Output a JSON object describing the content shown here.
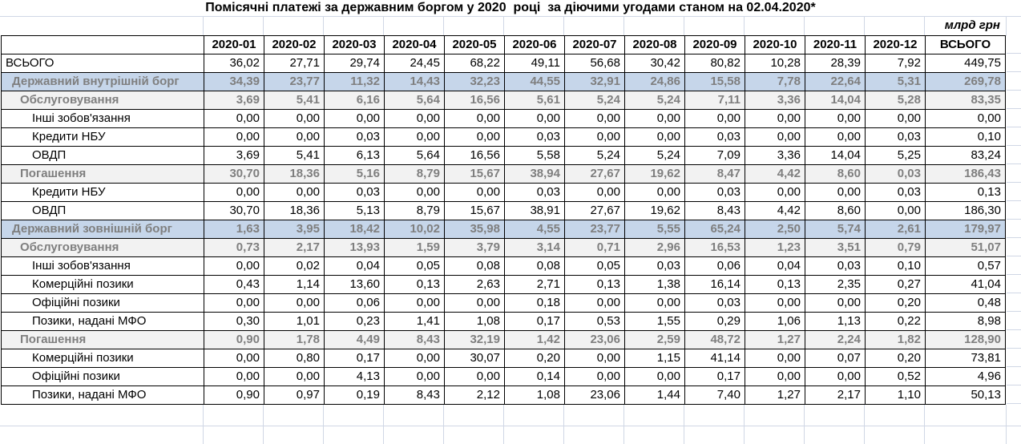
{
  "title": "Помісячні платежі за державним боргом у 2020  році  за діючими угодами станом на 02.04.2020*",
  "unit_label": "млрд грн",
  "colors": {
    "section_blue_bg": "#c6d6ea",
    "section_gray_bg": "#f2f2f2",
    "section_text": "#7f7f7f",
    "gridline": "#d0d7e5",
    "table_border": "#000000"
  },
  "table": {
    "label_header": "",
    "col_headers": [
      "2020-01",
      "2020-02",
      "2020-03",
      "2020-04",
      "2020-05",
      "2020-06",
      "2020-07",
      "2020-08",
      "2020-09",
      "2020-10",
      "2020-11",
      "2020-12",
      "ВСЬОГО"
    ],
    "rows": [
      {
        "label": "ВСЬОГО",
        "style": "plain",
        "indent": 0,
        "values": [
          "36,02",
          "27,71",
          "29,74",
          "24,45",
          "68,22",
          "49,11",
          "56,68",
          "30,42",
          "80,82",
          "10,28",
          "28,39",
          "7,92"
        ],
        "total": "449,75"
      },
      {
        "label": "Державний внутрішній борг",
        "style": "blue",
        "indent": 1,
        "values": [
          "34,39",
          "23,77",
          "11,32",
          "14,43",
          "32,23",
          "44,55",
          "32,91",
          "24,86",
          "15,58",
          "7,78",
          "22,64",
          "5,31"
        ],
        "total": "269,78"
      },
      {
        "label": "Обслуговування",
        "style": "gray",
        "indent": 2,
        "values": [
          "3,69",
          "5,41",
          "6,16",
          "5,64",
          "16,56",
          "5,61",
          "5,24",
          "5,24",
          "7,11",
          "3,36",
          "14,04",
          "5,28"
        ],
        "total": "83,35"
      },
      {
        "label": "Інші зобов'язання",
        "style": "plain",
        "indent": 3,
        "values": [
          "0,00",
          "0,00",
          "0,00",
          "0,00",
          "0,00",
          "0,00",
          "0,00",
          "0,00",
          "0,00",
          "0,00",
          "0,00",
          "0,00"
        ],
        "total": "0,00"
      },
      {
        "label": "Кредити НБУ",
        "style": "plain",
        "indent": 3,
        "values": [
          "0,00",
          "0,00",
          "0,03",
          "0,00",
          "0,00",
          "0,03",
          "0,00",
          "0,00",
          "0,03",
          "0,00",
          "0,00",
          "0,03"
        ],
        "total": "0,10"
      },
      {
        "label": "ОВДП",
        "style": "plain",
        "indent": 3,
        "values": [
          "3,69",
          "5,41",
          "6,13",
          "5,64",
          "16,56",
          "5,58",
          "5,24",
          "5,24",
          "7,09",
          "3,36",
          "14,04",
          "5,25"
        ],
        "total": "83,24"
      },
      {
        "label": "Погашення",
        "style": "gray",
        "indent": 2,
        "values": [
          "30,70",
          "18,36",
          "5,16",
          "8,79",
          "15,67",
          "38,94",
          "27,67",
          "19,62",
          "8,47",
          "4,42",
          "8,60",
          "0,03"
        ],
        "total": "186,43"
      },
      {
        "label": "Кредити НБУ",
        "style": "plain",
        "indent": 3,
        "values": [
          "0,00",
          "0,00",
          "0,03",
          "0,00",
          "0,00",
          "0,03",
          "0,00",
          "0,00",
          "0,03",
          "0,00",
          "0,00",
          "0,03"
        ],
        "total": "0,13"
      },
      {
        "label": "ОВДП",
        "style": "plain",
        "indent": 3,
        "values": [
          "30,70",
          "18,36",
          "5,13",
          "8,79",
          "15,67",
          "38,91",
          "27,67",
          "19,62",
          "8,43",
          "4,42",
          "8,60",
          "0,00"
        ],
        "total": "186,30"
      },
      {
        "label": "Державний зовнішній борг",
        "style": "blue",
        "indent": 1,
        "values": [
          "1,63",
          "3,95",
          "18,42",
          "10,02",
          "35,98",
          "4,55",
          "23,77",
          "5,55",
          "65,24",
          "2,50",
          "5,74",
          "2,61"
        ],
        "total": "179,97"
      },
      {
        "label": "Обслуговування",
        "style": "gray",
        "indent": 2,
        "values": [
          "0,73",
          "2,17",
          "13,93",
          "1,59",
          "3,79",
          "3,14",
          "0,71",
          "2,96",
          "16,53",
          "1,23",
          "3,51",
          "0,79"
        ],
        "total": "51,07"
      },
      {
        "label": "Інші зобов'язання",
        "style": "plain",
        "indent": 3,
        "values": [
          "0,00",
          "0,02",
          "0,04",
          "0,05",
          "0,08",
          "0,08",
          "0,05",
          "0,03",
          "0,06",
          "0,04",
          "0,03",
          "0,10"
        ],
        "total": "0,57"
      },
      {
        "label": "Комерційні позики",
        "style": "plain",
        "indent": 3,
        "values": [
          "0,43",
          "1,14",
          "13,60",
          "0,13",
          "2,63",
          "2,71",
          "0,13",
          "1,38",
          "16,14",
          "0,13",
          "2,35",
          "0,27"
        ],
        "total": "41,04"
      },
      {
        "label": "Офіційні позики",
        "style": "plain",
        "indent": 3,
        "values": [
          "0,00",
          "0,00",
          "0,06",
          "0,00",
          "0,00",
          "0,18",
          "0,00",
          "0,00",
          "0,03",
          "0,00",
          "0,00",
          "0,20"
        ],
        "total": "0,48"
      },
      {
        "label": "Позики, надані МФО",
        "style": "plain",
        "indent": 3,
        "values": [
          "0,30",
          "1,01",
          "0,23",
          "1,41",
          "1,08",
          "0,17",
          "0,53",
          "1,55",
          "0,29",
          "1,06",
          "1,13",
          "0,22"
        ],
        "total": "8,98"
      },
      {
        "label": "Погашення",
        "style": "gray",
        "indent": 2,
        "values": [
          "0,90",
          "1,78",
          "4,49",
          "8,43",
          "32,19",
          "1,42",
          "23,06",
          "2,59",
          "48,72",
          "1,27",
          "2,24",
          "1,82"
        ],
        "total": "128,90"
      },
      {
        "label": "Комерційні позики",
        "style": "plain",
        "indent": 3,
        "values": [
          "0,00",
          "0,80",
          "0,17",
          "0,00",
          "30,07",
          "0,20",
          "0,00",
          "1,15",
          "41,14",
          "0,00",
          "0,07",
          "0,20"
        ],
        "total": "73,81"
      },
      {
        "label": "Офіційні позики",
        "style": "plain",
        "indent": 3,
        "values": [
          "0,00",
          "0,00",
          "4,13",
          "0,00",
          "0,00",
          "0,14",
          "0,00",
          "0,00",
          "0,17",
          "0,00",
          "0,00",
          "0,52"
        ],
        "total": "4,96"
      },
      {
        "label": "Позики, надані МФО",
        "style": "plain",
        "indent": 3,
        "values": [
          "0,90",
          "0,97",
          "0,19",
          "8,43",
          "2,12",
          "1,08",
          "23,06",
          "1,44",
          "7,40",
          "1,27",
          "2,17",
          "1,10"
        ],
        "total": "50,13"
      }
    ]
  }
}
